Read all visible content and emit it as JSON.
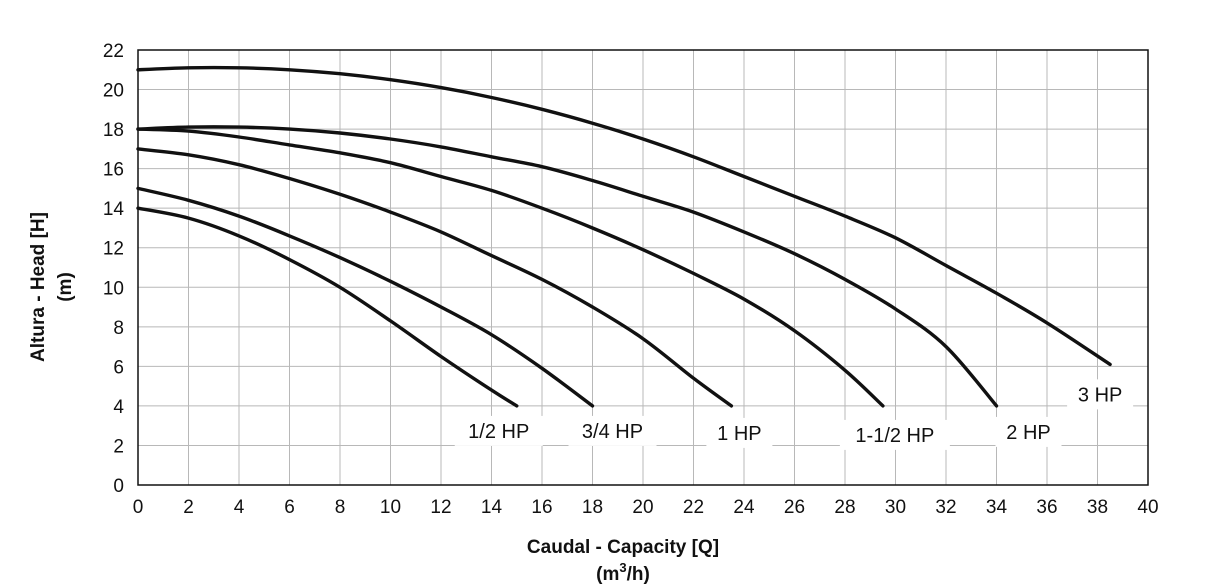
{
  "chart_data": {
    "type": "line",
    "title": "",
    "xlabel": "Caudal - Capacity [Q]",
    "xunit_prefix": "(m",
    "xunit_sup": "3",
    "xunit_suffix": "/h)",
    "ylabel_line1": "Altura - Head [H]",
    "ylabel_line2": "(m)",
    "xlim": [
      0,
      40
    ],
    "ylim": [
      0,
      22
    ],
    "xticks": [
      0,
      2,
      4,
      6,
      8,
      10,
      12,
      14,
      16,
      18,
      20,
      22,
      24,
      26,
      28,
      30,
      32,
      34,
      36,
      38,
      40
    ],
    "yticks": [
      0,
      2,
      4,
      6,
      8,
      10,
      12,
      14,
      16,
      18,
      20,
      22
    ],
    "grid": true,
    "legend": "none",
    "series": [
      {
        "name": "1/2 HP",
        "x": [
          0,
          2,
          4,
          6,
          8,
          10,
          12,
          14,
          15
        ],
        "y": [
          14.0,
          13.5,
          12.6,
          11.4,
          10.0,
          8.3,
          6.5,
          4.8,
          4.0
        ]
      },
      {
        "name": "3/4 HP",
        "x": [
          0,
          2,
          4,
          6,
          8,
          10,
          12,
          14,
          16,
          18
        ],
        "y": [
          15.0,
          14.4,
          13.6,
          12.6,
          11.5,
          10.3,
          9.0,
          7.6,
          5.9,
          4.0
        ]
      },
      {
        "name": "1 HP",
        "x": [
          0,
          2,
          4,
          6,
          8,
          10,
          12,
          14,
          16,
          18,
          20,
          22,
          23.5
        ],
        "y": [
          17.0,
          16.7,
          16.2,
          15.5,
          14.7,
          13.8,
          12.8,
          11.6,
          10.4,
          9.0,
          7.4,
          5.4,
          4.0
        ]
      },
      {
        "name": "1-1/2 HP",
        "x": [
          0,
          2,
          4,
          6,
          8,
          10,
          12,
          14,
          16,
          18,
          20,
          22,
          24,
          26,
          28,
          29.5
        ],
        "y": [
          18.0,
          17.9,
          17.6,
          17.2,
          16.8,
          16.3,
          15.6,
          14.9,
          14.0,
          13.0,
          11.9,
          10.7,
          9.4,
          7.8,
          5.8,
          4.0
        ]
      },
      {
        "name": "2 HP",
        "x": [
          0,
          2,
          4,
          6,
          8,
          10,
          12,
          14,
          16,
          18,
          20,
          22,
          24,
          26,
          28,
          30,
          32,
          34
        ],
        "y": [
          18.0,
          18.1,
          18.1,
          18.0,
          17.8,
          17.5,
          17.1,
          16.6,
          16.1,
          15.4,
          14.6,
          13.8,
          12.8,
          11.7,
          10.4,
          8.9,
          7.0,
          4.0
        ]
      },
      {
        "name": "3 HP",
        "x": [
          0,
          2,
          4,
          6,
          8,
          10,
          12,
          14,
          16,
          18,
          20,
          22,
          24,
          26,
          28,
          30,
          32,
          34,
          36,
          38.5
        ],
        "y": [
          21.0,
          21.1,
          21.1,
          21.0,
          20.8,
          20.5,
          20.1,
          19.6,
          19.0,
          18.3,
          17.5,
          16.6,
          15.6,
          14.6,
          13.6,
          12.5,
          11.1,
          9.7,
          8.2,
          6.1
        ]
      }
    ],
    "curve_labels": [
      "1/2 HP",
      "3/4 HP",
      "1 HP",
      "1-1/2 HP",
      "2 HP",
      "3 HP"
    ]
  }
}
